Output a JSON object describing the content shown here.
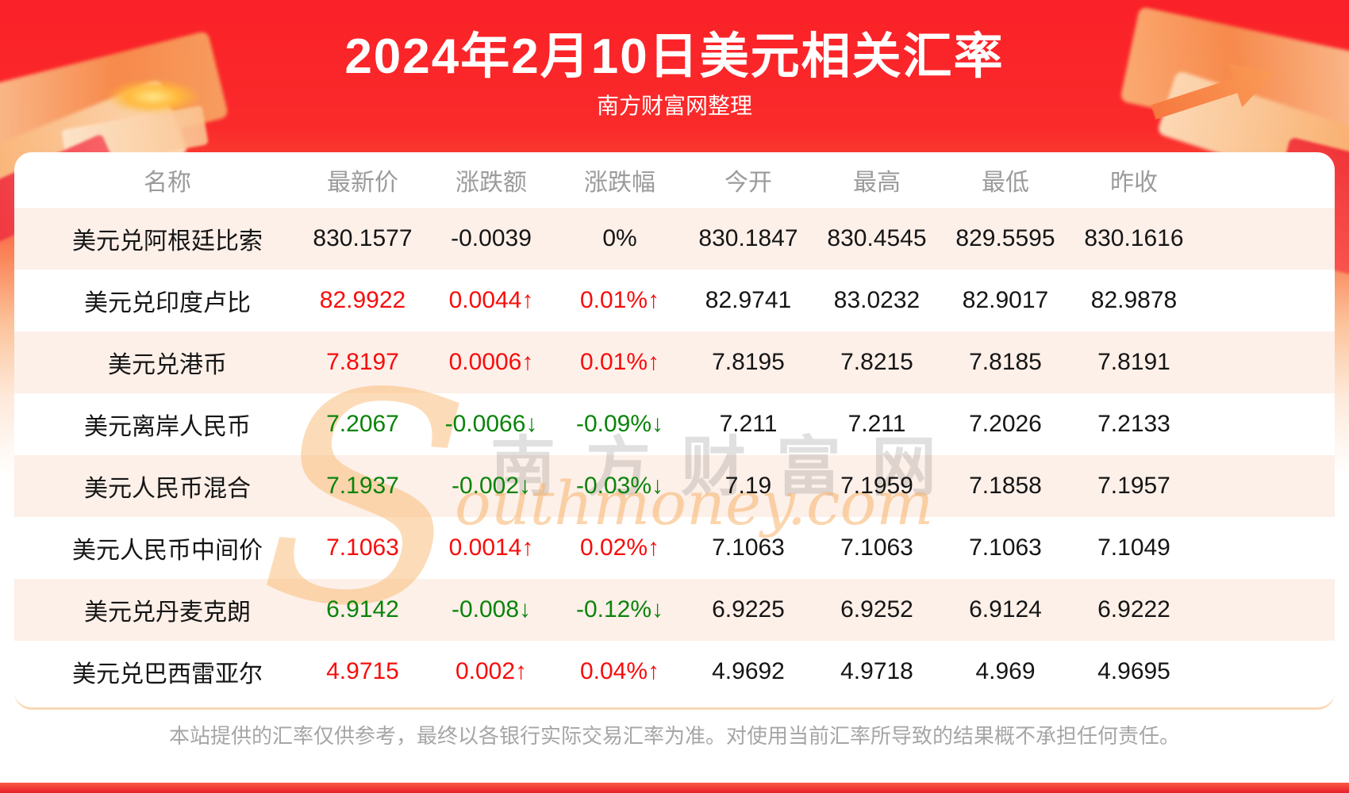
{
  "page": {
    "title": "2024年2月10日美元相关汇率",
    "subtitle": "南方财富网整理",
    "disclaimer": "本站提供的汇率仅供参考，最终以各银行实际交易汇率为准。对使用当前汇率所导致的结果概不承担任何责任。",
    "watermark": {
      "swoosh": "S",
      "site_cn": "南方财富网",
      "site_en": "outhmoney.com"
    }
  },
  "colors": {
    "banner_red": "#fa2a2b",
    "up_red": "#f70d0d",
    "down_green": "#0a840a",
    "neutral_black": "#151515",
    "header_gray": "#9b9b9b",
    "alt_row_bg": "#fdf0e9",
    "card_bottom_line": "#f8d8b4"
  },
  "chart_data": {
    "type": "table",
    "title": "2024年2月10日美元相关汇率",
    "columns": [
      "名称",
      "最新价",
      "涨跌额",
      "涨跌幅",
      "今开",
      "最高",
      "最低",
      "昨收"
    ],
    "rows": [
      [
        "美元兑阿根廷比索",
        "830.1577",
        "-0.0039",
        "0%",
        "830.1847",
        "830.4545",
        "829.5595",
        "830.1616"
      ],
      [
        "美元兑印度卢比",
        "82.9922",
        "0.0044↑",
        "0.01%↑",
        "82.9741",
        "83.0232",
        "82.9017",
        "82.9878"
      ],
      [
        "美元兑港币",
        "7.8197",
        "0.0006↑",
        "0.01%↑",
        "7.8195",
        "7.8215",
        "7.8185",
        "7.8191"
      ],
      [
        "美元离岸人民币",
        "7.2067",
        "-0.0066↓",
        "-0.09%↓",
        "7.211",
        "7.211",
        "7.2026",
        "7.2133"
      ],
      [
        "美元人民币混合",
        "7.1937",
        "-0.002↓",
        "-0.03%↓",
        "7.19",
        "7.1959",
        "7.1858",
        "7.1957"
      ],
      [
        "美元人民币中间价",
        "7.1063",
        "0.0014↑",
        "0.02%↑",
        "7.1063",
        "7.1063",
        "7.1063",
        "7.1049"
      ],
      [
        "美元兑丹麦克朗",
        "6.9142",
        "-0.008↓",
        "-0.12%↓",
        "6.9225",
        "6.9252",
        "6.9124",
        "6.9222"
      ],
      [
        "美元兑巴西雷亚尔",
        "4.9715",
        "0.002↑",
        "0.04%↑",
        "4.9692",
        "4.9718",
        "4.969",
        "4.9695"
      ]
    ],
    "directions": [
      "flat",
      "up",
      "up",
      "down",
      "down",
      "up",
      "down",
      "up"
    ]
  }
}
